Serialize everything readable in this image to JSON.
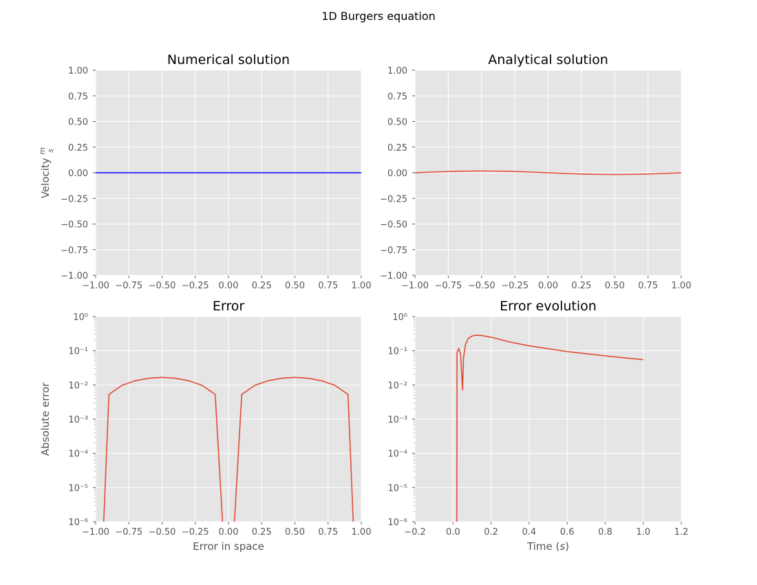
{
  "figure": {
    "suptitle": "1D Burgers equation"
  },
  "colors": {
    "panel_bg": "#e5e5e5",
    "grid": "#ffffff",
    "tick_text": "#555555",
    "numerical_line": "#0000ff",
    "red_line": "#e24a33"
  },
  "chart_data": [
    {
      "type": "line",
      "title": "Numerical solution",
      "xlabel": "",
      "ylabel": "Velocity m/s",
      "xlim": [
        -1.0,
        1.0
      ],
      "ylim": [
        -1.0,
        1.0
      ],
      "x_ticks": [
        "−1.00",
        "−0.75",
        "−0.50",
        "−0.25",
        "0.00",
        "0.25",
        "0.50",
        "0.75",
        "1.00"
      ],
      "y_ticks": [
        "−1.00",
        "−0.75",
        "−0.50",
        "−0.25",
        "0.00",
        "0.25",
        "0.50",
        "0.75",
        "1.00"
      ],
      "grid": true,
      "series": [
        {
          "color": "#0000ff",
          "x": [
            -1.0,
            1.0
          ],
          "y": [
            0.0,
            0.0
          ]
        }
      ]
    },
    {
      "type": "line",
      "title": "Analytical solution",
      "xlabel": "",
      "ylabel": "",
      "xlim": [
        -1.0,
        1.0
      ],
      "ylim": [
        -1.0,
        1.0
      ],
      "x_ticks": [
        "−1.00",
        "−0.75",
        "−0.50",
        "−0.25",
        "0.00",
        "0.25",
        "0.50",
        "0.75",
        "1.00"
      ],
      "y_ticks": [
        "−1.00",
        "−0.75",
        "−0.50",
        "−0.25",
        "0.00",
        "0.25",
        "0.50",
        "0.75",
        "1.00"
      ],
      "grid": true,
      "series": [
        {
          "color": "#e24a33",
          "x": [
            -1.0,
            -0.9,
            -0.8,
            -0.7,
            -0.6,
            -0.5,
            -0.4,
            -0.3,
            -0.2,
            -0.1,
            0.0,
            0.1,
            0.2,
            0.3,
            0.4,
            0.5,
            0.6,
            0.7,
            0.8,
            0.9,
            1.0
          ],
          "y": [
            0.0,
            0.005,
            0.01,
            0.014,
            0.016,
            0.017,
            0.016,
            0.014,
            0.01,
            0.005,
            0.0,
            -0.005,
            -0.01,
            -0.014,
            -0.016,
            -0.017,
            -0.016,
            -0.014,
            -0.01,
            -0.005,
            0.0
          ]
        }
      ]
    },
    {
      "type": "line",
      "title": "Error",
      "xlabel": "Error in space",
      "ylabel": "Absolute error",
      "xlim": [
        -1.0,
        1.0
      ],
      "ylim": [
        1e-06,
        1
      ],
      "y_scale": "log",
      "x_ticks": [
        "−1.00",
        "−0.75",
        "−0.50",
        "−0.25",
        "0.00",
        "0.25",
        "0.50",
        "0.75",
        "1.00"
      ],
      "y_ticks": [
        "10⁻⁶",
        "10⁻⁵",
        "10⁻⁴",
        "10⁻³",
        "10⁻²",
        "10⁻¹",
        "10⁰"
      ],
      "grid": true,
      "series": [
        {
          "color": "#e24a33",
          "x": [
            -0.95,
            -0.9,
            -0.8,
            -0.7,
            -0.6,
            -0.5,
            -0.4,
            -0.3,
            -0.2,
            -0.1,
            -0.03,
            0.03,
            0.1,
            0.2,
            0.3,
            0.4,
            0.5,
            0.6,
            0.7,
            0.8,
            0.9,
            0.95
          ],
          "y": [
            1e-07,
            0.0053,
            0.0098,
            0.0133,
            0.0157,
            0.0167,
            0.0157,
            0.0133,
            0.0098,
            0.0053,
            1e-07,
            1e-07,
            0.0053,
            0.0098,
            0.0133,
            0.0157,
            0.0167,
            0.0157,
            0.0133,
            0.0098,
            0.0053,
            1e-07
          ]
        }
      ]
    },
    {
      "type": "line",
      "title": "Error evolution",
      "xlabel": "Time (s)",
      "ylabel": "",
      "xlim": [
        -0.2,
        1.2
      ],
      "ylim": [
        1e-06,
        1
      ],
      "y_scale": "log",
      "x_ticks": [
        "−0.2",
        "0.0",
        "0.2",
        "0.4",
        "0.6",
        "0.8",
        "1.0",
        "1.2"
      ],
      "y_ticks": [
        "10⁻⁶",
        "10⁻⁵",
        "10⁻⁴",
        "10⁻³",
        "10⁻²",
        "10⁻¹",
        "10⁰"
      ],
      "grid": true,
      "series": [
        {
          "color": "#e24a33",
          "x": [
            0.02,
            0.021,
            0.03,
            0.04,
            0.05,
            0.055,
            0.065,
            0.08,
            0.1,
            0.12,
            0.15,
            0.2,
            0.3,
            0.4,
            0.5,
            0.6,
            0.7,
            0.8,
            0.9,
            1.0
          ],
          "y": [
            1e-07,
            0.09,
            0.115,
            0.08,
            0.007,
            0.06,
            0.15,
            0.23,
            0.27,
            0.285,
            0.28,
            0.25,
            0.18,
            0.14,
            0.115,
            0.095,
            0.082,
            0.071,
            0.062,
            0.055
          ]
        }
      ]
    }
  ]
}
